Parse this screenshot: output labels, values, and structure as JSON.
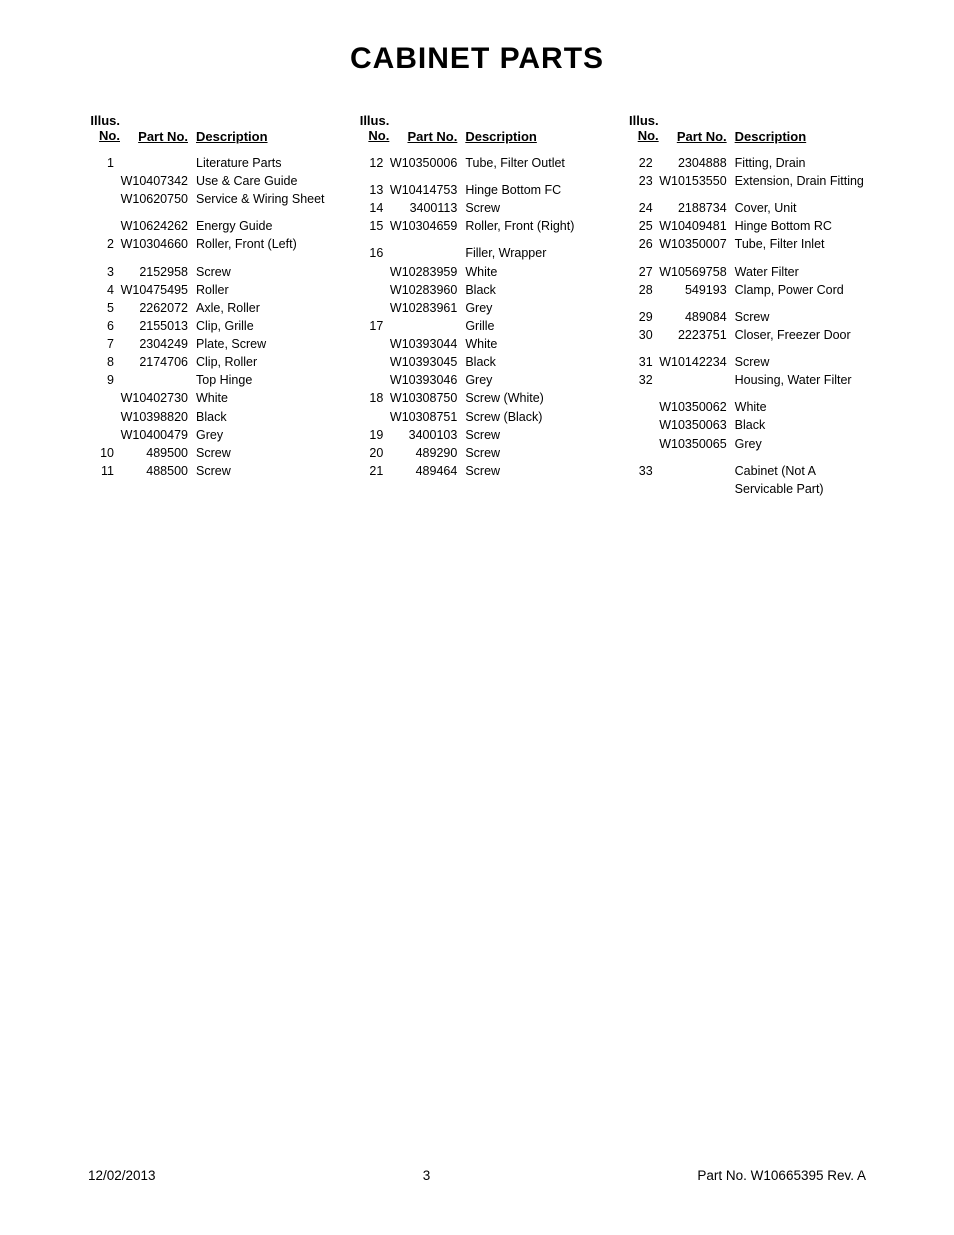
{
  "title": "CABINET PARTS",
  "headers": {
    "illus_top": "Illus.",
    "illus_bot": "No.",
    "partno": "Part No.",
    "desc": "Description"
  },
  "col1": [
    {
      "no": "1",
      "part": "",
      "desc": "Literature Parts"
    },
    {
      "no": "",
      "part": "W10407342",
      "desc": "Use & Care Guide"
    },
    {
      "no": "",
      "part": "W10620750",
      "desc": "Service & Wiring Sheet"
    },
    {
      "gap": true
    },
    {
      "no": "",
      "part": "W10624262",
      "desc": "Energy Guide"
    },
    {
      "no": "2",
      "part": "W10304660",
      "desc": "Roller, Front (Left)"
    },
    {
      "gap": true
    },
    {
      "no": "3",
      "part": "2152958",
      "desc": "Screw"
    },
    {
      "no": "4",
      "part": "W10475495",
      "desc": "Roller"
    },
    {
      "no": "5",
      "part": "2262072",
      "desc": "Axle, Roller"
    },
    {
      "no": "6",
      "part": "2155013",
      "desc": "Clip, Grille"
    },
    {
      "no": "7",
      "part": "2304249",
      "desc": "Plate, Screw"
    },
    {
      "no": "8",
      "part": "2174706",
      "desc": "Clip, Roller"
    },
    {
      "no": "9",
      "part": "",
      "desc": "Top Hinge"
    },
    {
      "no": "",
      "part": "W10402730",
      "desc": "White"
    },
    {
      "no": "",
      "part": "W10398820",
      "desc": "Black"
    },
    {
      "no": "",
      "part": "W10400479",
      "desc": "Grey"
    },
    {
      "no": "10",
      "part": "489500",
      "desc": "Screw"
    },
    {
      "no": "11",
      "part": "488500",
      "desc": "Screw"
    }
  ],
  "col2": [
    {
      "no": "12",
      "part": "W10350006",
      "desc": "Tube, Filter Outlet"
    },
    {
      "gap": true
    },
    {
      "no": "13",
      "part": "W10414753",
      "desc": "Hinge Bottom FC"
    },
    {
      "no": "14",
      "part": "3400113",
      "desc": "Screw"
    },
    {
      "no": "15",
      "part": "W10304659",
      "desc": "Roller, Front (Right)"
    },
    {
      "gap": true
    },
    {
      "no": "16",
      "part": "",
      "desc": "Filler, Wrapper"
    },
    {
      "no": "",
      "part": "W10283959",
      "desc": "White"
    },
    {
      "no": "",
      "part": "W10283960",
      "desc": "Black"
    },
    {
      "no": "",
      "part": "W10283961",
      "desc": "Grey"
    },
    {
      "no": "17",
      "part": "",
      "desc": "Grille"
    },
    {
      "no": "",
      "part": "W10393044",
      "desc": "White"
    },
    {
      "no": "",
      "part": "W10393045",
      "desc": "Black"
    },
    {
      "no": "",
      "part": "W10393046",
      "desc": "Grey"
    },
    {
      "no": "18",
      "part": "W10308750",
      "desc": "Screw (White)"
    },
    {
      "no": "",
      "part": "W10308751",
      "desc": "Screw (Black)"
    },
    {
      "no": "19",
      "part": "3400103",
      "desc": "Screw"
    },
    {
      "no": "20",
      "part": "489290",
      "desc": "Screw"
    },
    {
      "no": "21",
      "part": "489464",
      "desc": "Screw"
    }
  ],
  "col3": [
    {
      "no": "22",
      "part": "2304888",
      "desc": "Fitting, Drain"
    },
    {
      "no": "23",
      "part": "W10153550",
      "desc": "Extension, Drain Fitting"
    },
    {
      "gap": true
    },
    {
      "no": "24",
      "part": "2188734",
      "desc": "Cover, Unit"
    },
    {
      "no": "25",
      "part": "W10409481",
      "desc": "Hinge Bottom RC"
    },
    {
      "no": "26",
      "part": "W10350007",
      "desc": "Tube, Filter Inlet"
    },
    {
      "gap": true
    },
    {
      "no": "27",
      "part": "W10569758",
      "desc": "Water Filter"
    },
    {
      "no": "28",
      "part": "549193",
      "desc": "Clamp, Power Cord"
    },
    {
      "gap": true
    },
    {
      "no": "29",
      "part": "489084",
      "desc": "Screw"
    },
    {
      "no": "30",
      "part": "2223751",
      "desc": "Closer, Freezer Door"
    },
    {
      "gap": true
    },
    {
      "no": "31",
      "part": "W10142234",
      "desc": "Screw"
    },
    {
      "no": "32",
      "part": "",
      "desc": "Housing, Water Filter"
    },
    {
      "gap": true
    },
    {
      "no": "",
      "part": "W10350062",
      "desc": "White"
    },
    {
      "no": "",
      "part": "W10350063",
      "desc": "Black"
    },
    {
      "no": "",
      "part": "W10350065",
      "desc": "Grey"
    },
    {
      "gap": true
    },
    {
      "no": "33",
      "part": "",
      "desc": "Cabinet (Not A"
    },
    {
      "no": "",
      "part": "",
      "desc": "Servicable Part)"
    }
  ],
  "footer": {
    "date": "12/02/2013",
    "page": "3",
    "rev": "Part No.  W10665395  Rev.  A"
  }
}
